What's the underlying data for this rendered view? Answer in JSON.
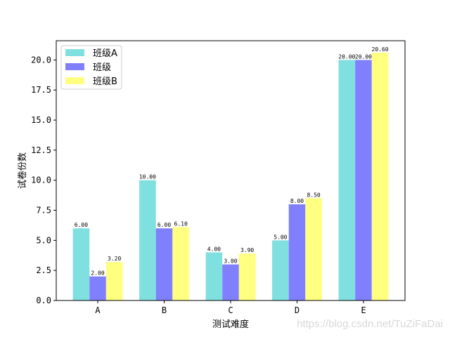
{
  "chart_data": {
    "type": "bar",
    "categories": [
      "A",
      "B",
      "C",
      "D",
      "E"
    ],
    "series": [
      {
        "name": "班级A",
        "values": [
          6.0,
          10.0,
          4.0,
          5.0,
          20.0
        ],
        "color": "#80e0e0"
      },
      {
        "name": "班级",
        "values": [
          2.0,
          6.0,
          3.0,
          8.0,
          20.0
        ],
        "color": "#8080ff"
      },
      {
        "name": "班级B",
        "values": [
          3.2,
          6.1,
          3.9,
          8.5,
          20.6
        ],
        "color": "#ffff80"
      }
    ],
    "data_labels": [
      [
        "6.00",
        "10.00",
        "4.00",
        "5.00",
        "20.00"
      ],
      [
        "2.00",
        "6.00",
        "3.00",
        "8.00",
        "20.00"
      ],
      [
        "3.20",
        "6.10",
        "3.90",
        "8.50",
        "20.60"
      ]
    ],
    "xlabel": "测试难度",
    "ylabel": "试卷份数",
    "ylim": [
      0,
      21.6
    ],
    "yticks": [
      "0.0",
      "2.5",
      "5.0",
      "7.5",
      "10.0",
      "12.5",
      "15.0",
      "17.5",
      "20.0"
    ],
    "grid": false,
    "legend_position": "top-left"
  },
  "watermark": "https://blog.csdn.net/TuZiFaDai"
}
